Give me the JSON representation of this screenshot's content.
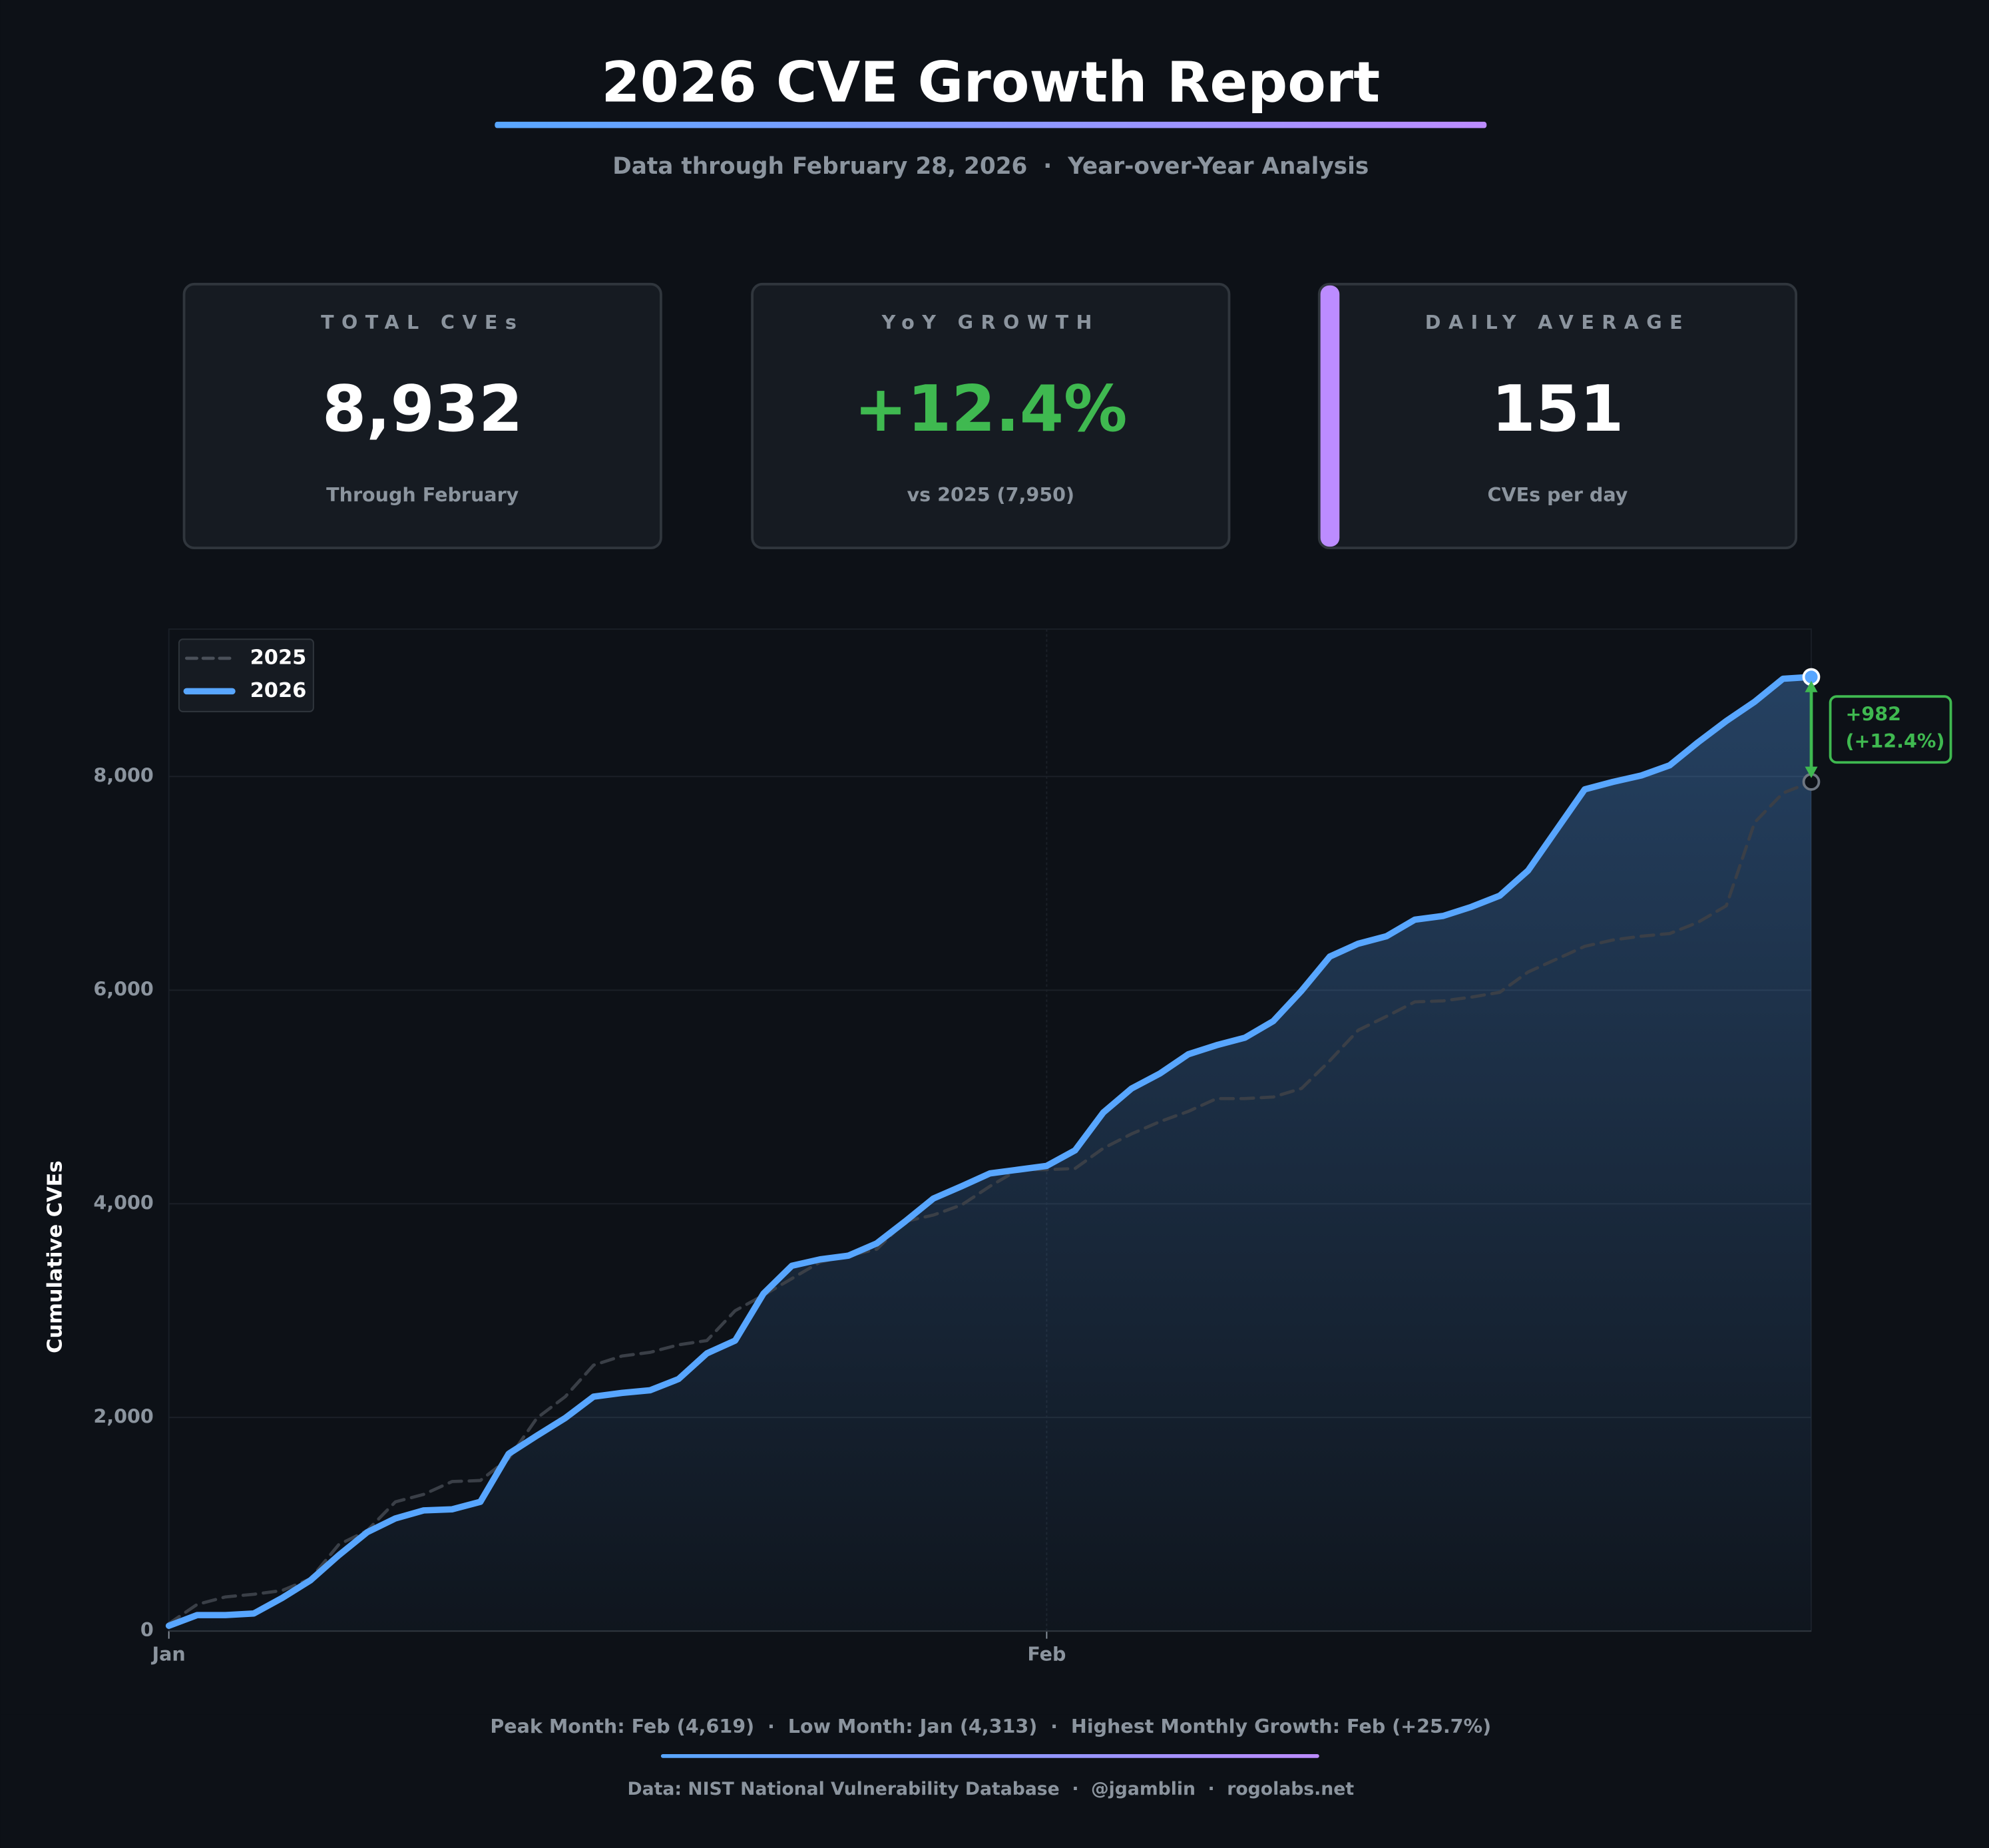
{
  "header": {
    "title": "2026 CVE Growth Report",
    "subtitle": "Data through February 28, 2026  ·  Year-over-Year Analysis"
  },
  "cards": [
    {
      "label": "TOTAL CVEs",
      "value": "8,932",
      "note": "Through February"
    },
    {
      "label": "YoY GROWTH",
      "value": "+12.4%",
      "note": "vs 2025 (7,950)"
    },
    {
      "label": "DAILY AVERAGE",
      "value": "151",
      "note": "CVEs per day"
    }
  ],
  "chart_data": {
    "type": "line",
    "ylabel": "Cumulative CVEs",
    "categories": [
      "Jan",
      null,
      null,
      null,
      null,
      null,
      null,
      null,
      null,
      null,
      null,
      null,
      null,
      null,
      null,
      null,
      null,
      null,
      null,
      null,
      null,
      null,
      null,
      null,
      null,
      null,
      null,
      null,
      null,
      null,
      null,
      "Feb",
      null,
      null,
      null,
      null,
      null,
      null,
      null,
      null,
      null,
      null,
      null,
      null,
      null,
      null,
      null,
      null,
      null,
      null,
      null,
      null,
      null,
      null,
      null,
      null,
      null,
      null,
      null
    ],
    "series": [
      {
        "name": "2025",
        "color": "#3a3f47",
        "dashed": true,
        "values": [
          70,
          250,
          320,
          345,
          380,
          490,
          810,
          940,
          1210,
          1280,
          1400,
          1410,
          1615,
          1995,
          2195,
          2490,
          2575,
          2610,
          2680,
          2720,
          3000,
          3145,
          3300,
          3455,
          3515,
          3575,
          3835,
          3895,
          3990,
          4165,
          4320,
          4320,
          4330,
          4520,
          4655,
          4770,
          4865,
          4985,
          4985,
          5000,
          5080,
          5340,
          5625,
          5755,
          5890,
          5900,
          5935,
          5980,
          6170,
          6290,
          6410,
          6470,
          6505,
          6530,
          6635,
          6790,
          7570,
          7845,
          7950
        ]
      },
      {
        "name": "2026",
        "color": "#58a6ff",
        "dashed": false,
        "area": true,
        "values": [
          50,
          150,
          150,
          165,
          310,
          475,
          710,
          925,
          1055,
          1130,
          1140,
          1210,
          1660,
          1830,
          1995,
          2195,
          2230,
          2255,
          2360,
          2600,
          2720,
          3160,
          3420,
          3480,
          3515,
          3630,
          3835,
          4050,
          4165,
          4285,
          4320,
          4355,
          4500,
          4855,
          5080,
          5220,
          5400,
          5485,
          5555,
          5710,
          5995,
          6315,
          6435,
          6505,
          6660,
          6695,
          6780,
          6885,
          7120,
          7500,
          7880,
          7950,
          8010,
          8105,
          8320,
          8520,
          8700,
          8915,
          8932
        ]
      }
    ],
    "ylim": [
      0,
      9380
    ],
    "yticks": [
      0,
      {
        "value": 2000,
        "label": "2,000"
      },
      {
        "value": 4000,
        "label": "4,000"
      },
      {
        "value": 6000,
        "label": "6,000"
      },
      {
        "value": 8000,
        "label": "8,000"
      }
    ],
    "grid": true,
    "legend": "upper left",
    "annotation": [
      "+982",
      "(+12.4%)"
    ],
    "annotation_color": "#3fb950"
  },
  "footer": {
    "stats": "Peak Month: Feb (4,619)  ·  Low Month: Jan (4,313)  ·  Highest Monthly Growth: Feb (+25.7%)",
    "credits": "Data: NIST National Vulnerability Database  ·  @jgamblin  ·  rogolabs.net"
  }
}
